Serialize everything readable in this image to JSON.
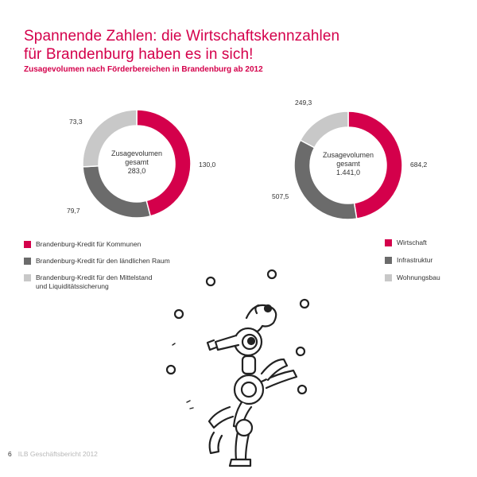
{
  "header": {
    "title_line1": "Spannende Zahlen: die Wirtschaftskennzahlen",
    "title_line2": "für Brandenburg haben es in sich!",
    "subtitle": "Zusagevolumen nach Förderbereichen in Brandenburg ab 2012"
  },
  "colors": {
    "red": "#d4004b",
    "dark": "#6b6b6b",
    "light": "#c8c8c8"
  },
  "chart_data": [
    {
      "type": "pie",
      "variant": "donut",
      "title": "",
      "center_label_line1": "Zusagevolumen",
      "center_label_line2": "gesamt",
      "center_total": "283,0",
      "slices": [
        {
          "name": "Brandenburg-Kredit für Kommunen",
          "value": 130.0,
          "label": "130,0",
          "color": "#d4004b"
        },
        {
          "name": "Brandenburg-Kredit für den ländlichen Raum",
          "value": 79.7,
          "label": "79,7",
          "color": "#6b6b6b"
        },
        {
          "name": "Brandenburg-Kredit für den Mittelstand und Liquiditätssicherung",
          "value": 73.3,
          "label": "73,3",
          "color": "#c8c8c8"
        }
      ]
    },
    {
      "type": "pie",
      "variant": "donut",
      "title": "",
      "center_label_line1": "Zusagevolumen",
      "center_label_line2": "gesamt",
      "center_total": "1.441,0",
      "slices": [
        {
          "name": "Wirtschaft",
          "value": 684.2,
          "label": "684,2",
          "color": "#d4004b"
        },
        {
          "name": "Infrastruktur",
          "value": 507.5,
          "label": "507,5",
          "color": "#6b6b6b"
        },
        {
          "name": "Wohnungsbau",
          "value": 249.3,
          "label": "249,3",
          "color": "#c8c8c8"
        }
      ]
    }
  ],
  "legend_left": [
    {
      "label": "Brandenburg-Kredit für Kommunen",
      "color": "#d4004b"
    },
    {
      "label": "Brandenburg-Kredit für den ländlichen Raum",
      "color": "#6b6b6b"
    },
    {
      "label": "Brandenburg-Kredit für den Mittelstand\nund Liquiditätssicherung",
      "color": "#c8c8c8"
    }
  ],
  "legend_right": [
    {
      "label": "Wirtschaft",
      "color": "#d4004b"
    },
    {
      "label": "Infrastruktur",
      "color": "#6b6b6b"
    },
    {
      "label": "Wohnungsbau",
      "color": "#c8c8c8"
    }
  ],
  "footer": {
    "page_number": "6",
    "publication": "ILB Geschäftsbericht 2012"
  }
}
